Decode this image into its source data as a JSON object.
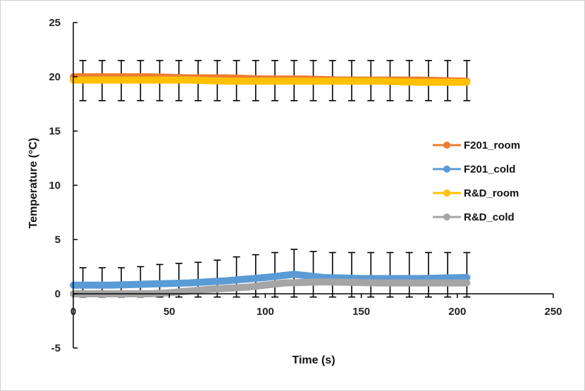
{
  "chart_data": {
    "type": "line",
    "title": "",
    "xlabel": "Time (s)",
    "ylabel": "Temperature (°C)",
    "xlim": [
      0,
      250
    ],
    "ylim": [
      -5,
      25
    ],
    "xticks": [
      0,
      50,
      100,
      150,
      200,
      250
    ],
    "yticks": [
      -5,
      0,
      5,
      10,
      15,
      20,
      25
    ],
    "grid": false,
    "legend_position": "right",
    "series": [
      {
        "name": "F201_room",
        "color": "#ED7D31",
        "x": [
          0,
          20,
          40,
          60,
          80,
          100,
          120,
          140,
          160,
          180,
          205
        ],
        "y": [
          20.0,
          20.0,
          20.0,
          19.9,
          19.9,
          19.8,
          19.8,
          19.7,
          19.7,
          19.7,
          19.6
        ]
      },
      {
        "name": "F201_cold",
        "color": "#5B9BD5",
        "x": [
          0,
          20,
          40,
          60,
          80,
          100,
          115,
          130,
          150,
          180,
          205
        ],
        "y": [
          0.8,
          0.8,
          0.9,
          1.0,
          1.2,
          1.5,
          1.8,
          1.5,
          1.4,
          1.4,
          1.5
        ]
      },
      {
        "name": "R&D_room",
        "color": "#FFC000",
        "x": [
          0,
          20,
          40,
          60,
          80,
          100,
          120,
          140,
          160,
          180,
          205
        ],
        "y": [
          19.7,
          19.7,
          19.7,
          19.7,
          19.6,
          19.6,
          19.6,
          19.6,
          19.6,
          19.5,
          19.5
        ]
      },
      {
        "name": "R&D_cold",
        "color": "#A5A5A5",
        "x": [
          0,
          20,
          40,
          50,
          70,
          90,
          110,
          130,
          160,
          205
        ],
        "y": [
          0.0,
          0.0,
          0.0,
          0.1,
          0.4,
          0.6,
          1.0,
          1.1,
          1.0,
          1.0
        ]
      }
    ],
    "error_bars": {
      "x": [
        5,
        15,
        25,
        35,
        45,
        55,
        65,
        75,
        85,
        95,
        105,
        115,
        125,
        135,
        145,
        155,
        165,
        175,
        185,
        195,
        205
      ],
      "room_upper": 21.5,
      "room_lower": 17.8,
      "cold_upper": [
        2.4,
        2.4,
        2.4,
        2.5,
        2.7,
        2.8,
        2.9,
        3.1,
        3.4,
        3.6,
        3.8,
        4.1,
        3.9,
        3.8,
        3.8,
        3.8,
        3.8,
        3.8,
        3.8,
        3.8,
        3.8
      ],
      "cold_lower": [
        -0.3,
        -0.3,
        -0.3,
        -0.3,
        -0.3,
        -0.3,
        -0.3,
        -0.3,
        -0.3,
        -0.3,
        -0.3,
        -0.3,
        -0.3,
        -0.3,
        -0.3,
        -0.3,
        -0.3,
        -0.3,
        -0.3,
        -0.3,
        -0.3
      ]
    }
  }
}
